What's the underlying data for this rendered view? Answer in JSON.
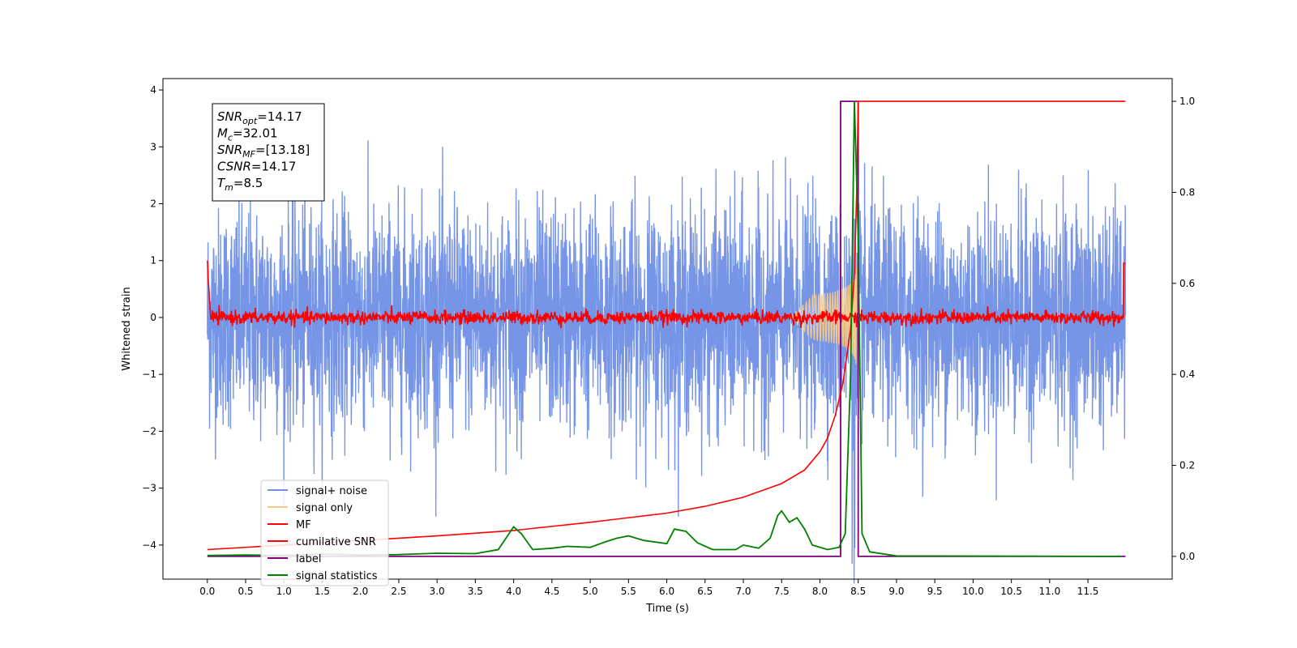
{
  "chart_data": {
    "type": "line",
    "title": "",
    "xlabel": "Time (s)",
    "ylabel": "Whitened strain",
    "xlim": [
      -0.58,
      12.6
    ],
    "ylim": [
      -4.6,
      4.2
    ],
    "y2lim": [
      -0.05,
      1.05
    ],
    "xticks": [
      0.0,
      0.5,
      1.0,
      1.5,
      2.0,
      2.5,
      3.0,
      3.5,
      4.0,
      4.5,
      5.0,
      5.5,
      6.0,
      6.5,
      7.0,
      7.5,
      8.0,
      8.5,
      9.0,
      9.5,
      10.0,
      10.5,
      11.0,
      11.5
    ],
    "xtick_labels": [
      "0.0",
      "0.5",
      "1.0",
      "1.5",
      "2.0",
      "2.5",
      "3.0",
      "3.5",
      "4.0",
      "4.5",
      "5.0",
      "5.5",
      "6.0",
      "6.5",
      "7.0",
      "7.5",
      "8.0",
      "8.5",
      "9.0",
      "9.5",
      "10.0",
      "10.5",
      "11.0",
      "11.5"
    ],
    "yticks": [
      -4,
      -3,
      -2,
      -1,
      0,
      1,
      2,
      3,
      4
    ],
    "ytick_labels": [
      "−4",
      "−3",
      "−2",
      "−1",
      "0",
      "1",
      "2",
      "3",
      "4"
    ],
    "y2ticks": [
      0.0,
      0.2,
      0.4,
      0.6,
      0.8,
      1.0
    ],
    "y2tick_labels": [
      "0.0",
      "0.2",
      "0.4",
      "0.6",
      "0.8",
      "1.0"
    ],
    "grid": false,
    "legend_position": "lower-left",
    "colors": {
      "noise": "#6f8fe6",
      "signal": "#f5c98a",
      "mf": "#ff0000",
      "csnr": "#ff0000",
      "label": "#800080",
      "stats": "#008000"
    },
    "legend": [
      {
        "key": "noise",
        "label": "signal+ noise"
      },
      {
        "key": "signal",
        "label": "signal only"
      },
      {
        "key": "mf",
        "label": "MF"
      },
      {
        "key": "csnr",
        "label": "cumilative SNR"
      },
      {
        "key": "label",
        "label": "label"
      },
      {
        "key": "stats",
        "label": "signal statistics"
      }
    ],
    "annotation": {
      "lines": [
        {
          "main": "SNR",
          "sub": "opt",
          "value": "=14.17"
        },
        {
          "main": "M",
          "sub": "c",
          "value": "=32.01"
        },
        {
          "main": "SNR",
          "sub": "MF",
          "value": "=[13.18]"
        },
        {
          "main": "CSNR",
          "sub": "",
          "value": "=14.17"
        },
        {
          "main": "T",
          "sub": "m",
          "value": "=8.5"
        }
      ]
    },
    "series": [
      {
        "key": "noise",
        "axis": "left",
        "x_range": [
          0.0,
          11.99
        ],
        "approx_envelope": [
          -1.2,
          1.3
        ],
        "peak_range": [
          -3.5,
          3.5
        ]
      },
      {
        "key": "mf",
        "axis": "left",
        "x_range": [
          0.0,
          11.99
        ],
        "start_value": 1.0,
        "end_value": 0.95,
        "noise_amplitude": 0.1
      },
      {
        "key": "signal",
        "axis": "left",
        "x_range": [
          7.6,
          8.55
        ],
        "peak_amplitude": 0.9
      },
      {
        "key": "label",
        "axis": "right",
        "points": [
          [
            0.0,
            0.0
          ],
          [
            8.27,
            0.0
          ],
          [
            8.27,
            1.0
          ],
          [
            8.5,
            1.0
          ],
          [
            8.5,
            0.0
          ],
          [
            11.99,
            0.0
          ]
        ]
      },
      {
        "key": "csnr",
        "axis": "right",
        "points": [
          [
            0.0,
            0.015
          ],
          [
            1.0,
            0.025
          ],
          [
            2.0,
            0.035
          ],
          [
            3.0,
            0.045
          ],
          [
            4.0,
            0.057
          ],
          [
            5.0,
            0.075
          ],
          [
            6.0,
            0.095
          ],
          [
            6.5,
            0.11
          ],
          [
            7.0,
            0.13
          ],
          [
            7.5,
            0.16
          ],
          [
            7.8,
            0.19
          ],
          [
            8.0,
            0.23
          ],
          [
            8.1,
            0.26
          ],
          [
            8.2,
            0.31
          ],
          [
            8.3,
            0.38
          ],
          [
            8.4,
            0.5
          ],
          [
            8.45,
            0.62
          ],
          [
            8.48,
            0.8
          ],
          [
            8.5,
            1.0
          ],
          [
            11.99,
            1.0
          ]
        ]
      },
      {
        "key": "stats",
        "axis": "right",
        "points": [
          [
            0.0,
            0.002
          ],
          [
            0.5,
            0.003
          ],
          [
            1.0,
            0.002
          ],
          [
            1.5,
            0.005
          ],
          [
            2.0,
            0.003
          ],
          [
            2.5,
            0.004
          ],
          [
            3.0,
            0.007
          ],
          [
            3.5,
            0.006
          ],
          [
            3.8,
            0.015
          ],
          [
            4.0,
            0.065
          ],
          [
            4.1,
            0.05
          ],
          [
            4.25,
            0.015
          ],
          [
            4.5,
            0.018
          ],
          [
            4.7,
            0.022
          ],
          [
            5.0,
            0.02
          ],
          [
            5.2,
            0.032
          ],
          [
            5.35,
            0.04
          ],
          [
            5.5,
            0.045
          ],
          [
            5.7,
            0.035
          ],
          [
            6.0,
            0.028
          ],
          [
            6.1,
            0.06
          ],
          [
            6.25,
            0.055
          ],
          [
            6.4,
            0.03
          ],
          [
            6.6,
            0.015
          ],
          [
            6.9,
            0.015
          ],
          [
            7.0,
            0.025
          ],
          [
            7.2,
            0.018
          ],
          [
            7.35,
            0.04
          ],
          [
            7.45,
            0.09
          ],
          [
            7.5,
            0.1
          ],
          [
            7.6,
            0.075
          ],
          [
            7.7,
            0.085
          ],
          [
            7.8,
            0.06
          ],
          [
            7.9,
            0.025
          ],
          [
            8.1,
            0.015
          ],
          [
            8.25,
            0.02
          ],
          [
            8.33,
            0.05
          ],
          [
            8.4,
            0.4
          ],
          [
            8.45,
            1.0
          ],
          [
            8.5,
            0.7
          ],
          [
            8.55,
            0.05
          ],
          [
            8.65,
            0.01
          ],
          [
            9.0,
            0.001
          ],
          [
            11.93,
            0.0
          ]
        ]
      }
    ]
  }
}
